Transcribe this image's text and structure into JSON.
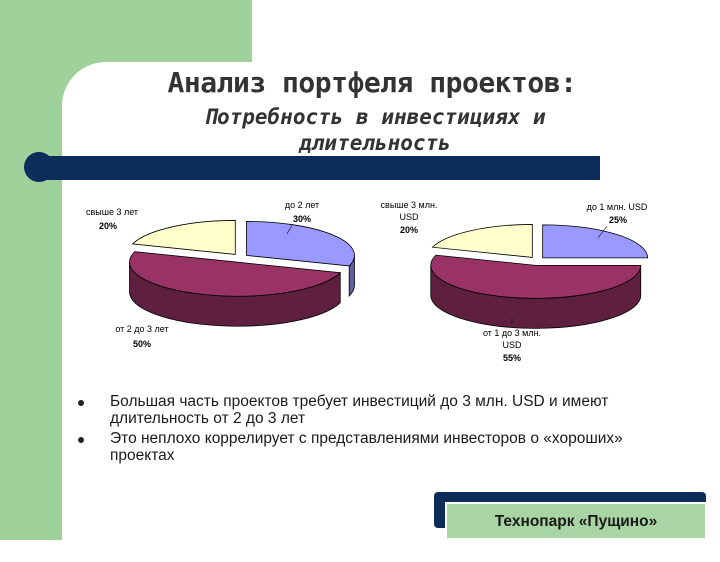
{
  "slide": {
    "title": "Анализ портфеля проектов:",
    "subtitle_line1": "Потребность в инвестициях и",
    "subtitle_line2": "длительность",
    "bullets": [
      "Большая часть проектов требует инвестиций до 3 млн. USD и имеют длительность от 2 до 3 лет",
      "Это неплохо коррелирует с представлениями инвесторов о «хороших» проектах"
    ],
    "footer": "Технопарк «Пущино»"
  },
  "colors": {
    "green": "#9fd19a",
    "navy": "#0c2d5a",
    "slice_purple": "#9999ff",
    "slice_maroon": "#993366",
    "slice_cream": "#ffffcc"
  },
  "chart_data": [
    {
      "type": "pie",
      "title": "",
      "series": [
        {
          "values": [
            30,
            50,
            20
          ]
        }
      ],
      "slices": [
        {
          "label_line1": "до 2 лет",
          "label_line2": "",
          "percent_label": "30%",
          "value": 30,
          "color": "#9999ff"
        },
        {
          "label_line1": "от 2 до 3 лет",
          "label_line2": "",
          "percent_label": "50%",
          "value": 50,
          "color": "#993366"
        },
        {
          "label_line1": "свыше 3 лет",
          "label_line2": "",
          "percent_label": "20%",
          "value": 20,
          "color": "#ffffcc"
        }
      ]
    },
    {
      "type": "pie",
      "title": "",
      "series": [
        {
          "values": [
            25,
            55,
            20
          ]
        }
      ],
      "slices": [
        {
          "label_line1": "до 1 млн. USD",
          "label_line2": "",
          "percent_label": "25%",
          "value": 25,
          "color": "#9999ff"
        },
        {
          "label_line1": "от 1 до 3 млн.",
          "label_line2": "USD",
          "percent_label": "55%",
          "value": 55,
          "color": "#993366"
        },
        {
          "label_line1": "свыше 3 млн.",
          "label_line2": "USD",
          "percent_label": "20%",
          "value": 20,
          "color": "#ffffcc"
        }
      ]
    }
  ]
}
